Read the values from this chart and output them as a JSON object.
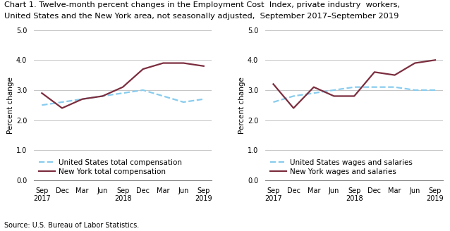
{
  "title_line1": "Chart 1. Twelve-month percent changes in the Employment Cost  Index, private industry  workers,",
  "title_line2": "United States and the New York area, not seasonally adjusted,  September 2017–September 2019",
  "source": "Source: U.S. Bureau of Labor Statistics.",
  "x_labels": [
    "Sep\n2017",
    "Dec",
    "Mar",
    "Jun",
    "Sep\n2018",
    "Dec",
    "Mar",
    "Jun",
    "Sep\n2019"
  ],
  "ylim": [
    0.0,
    5.0
  ],
  "yticks": [
    0.0,
    1.0,
    2.0,
    3.0,
    4.0,
    5.0
  ],
  "ylabel": "Percent change",
  "left_us": [
    2.5,
    2.6,
    2.7,
    2.8,
    2.9,
    3.0,
    2.8,
    2.6,
    2.7
  ],
  "left_ny": [
    2.9,
    2.4,
    2.7,
    2.8,
    3.1,
    3.7,
    3.9,
    3.9,
    3.8
  ],
  "left_us_label": "United States total compensation",
  "left_ny_label": "New York total compensation",
  "right_us": [
    2.6,
    2.8,
    2.9,
    3.0,
    3.1,
    3.1,
    3.1,
    3.0,
    3.0
  ],
  "right_ny": [
    3.2,
    2.4,
    3.1,
    2.8,
    2.8,
    3.6,
    3.5,
    3.9,
    4.0
  ],
  "right_us_label": "United States wages and salaries",
  "right_ny_label": "New York wages and salaries",
  "us_color": "#88CCEE",
  "ny_color": "#7B2D3E",
  "us_linestyle": "--",
  "ny_linestyle": "-",
  "linewidth": 1.6,
  "title_fontsize": 8.2,
  "axis_label_fontsize": 7.5,
  "tick_fontsize": 7.0,
  "legend_fontsize": 7.5,
  "source_fontsize": 7.0
}
